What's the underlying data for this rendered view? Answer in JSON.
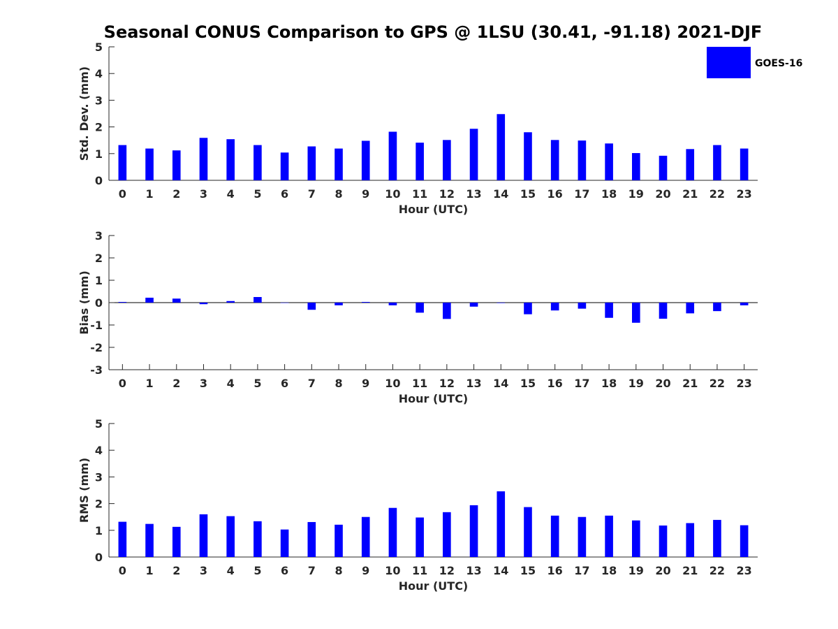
{
  "figure": {
    "title": "Seasonal CONUS Comparison to GPS @ 1LSU (30.41, -91.18) 2021-DJF",
    "legend_label": "GOES-16",
    "legend_position": "top-right",
    "bar_color": "#0000ff"
  },
  "chart_data": [
    {
      "type": "bar",
      "title": "Seasonal CONUS Comparison to GPS @ 1LSU (30.41, -91.18) 2021-DJF",
      "xlabel": "Hour (UTC)",
      "ylabel": "Std. Dev. (mm)",
      "ylim": [
        0,
        5
      ],
      "yticks": [
        "0",
        "1",
        "2",
        "3",
        "4",
        "5"
      ],
      "categories": [
        "0",
        "1",
        "2",
        "3",
        "4",
        "5",
        "6",
        "7",
        "8",
        "9",
        "10",
        "11",
        "12",
        "13",
        "14",
        "15",
        "16",
        "17",
        "18",
        "19",
        "20",
        "21",
        "22",
        "23"
      ],
      "series": [
        {
          "name": "GOES-16",
          "values": [
            1.32,
            1.19,
            1.12,
            1.59,
            1.54,
            1.32,
            1.04,
            1.27,
            1.19,
            1.48,
            1.82,
            1.41,
            1.51,
            1.93,
            2.48,
            1.8,
            1.51,
            1.49,
            1.38,
            1.02,
            0.92,
            1.17,
            1.32,
            1.19
          ]
        }
      ]
    },
    {
      "type": "bar",
      "xlabel": "Hour (UTC)",
      "ylabel": "Bias (mm)",
      "ylim": [
        -3,
        3
      ],
      "yticks": [
        "-3",
        "-2",
        "-1",
        "0",
        "1",
        "2",
        "3"
      ],
      "categories": [
        "0",
        "1",
        "2",
        "3",
        "4",
        "5",
        "6",
        "7",
        "8",
        "9",
        "10",
        "11",
        "12",
        "13",
        "14",
        "15",
        "16",
        "17",
        "18",
        "19",
        "20",
        "21",
        "22",
        "23"
      ],
      "series": [
        {
          "name": "GOES-16",
          "values": [
            0.03,
            0.22,
            0.18,
            -0.07,
            0.07,
            0.25,
            -0.01,
            -0.32,
            -0.12,
            0.03,
            -0.12,
            -0.45,
            -0.73,
            -0.18,
            -0.02,
            -0.52,
            -0.35,
            -0.27,
            -0.68,
            -0.9,
            -0.72,
            -0.48,
            -0.38,
            -0.12
          ]
        }
      ]
    },
    {
      "type": "bar",
      "xlabel": "Hour (UTC)",
      "ylabel": "RMS (mm)",
      "ylim": [
        0,
        5
      ],
      "yticks": [
        "0",
        "1",
        "2",
        "3",
        "4",
        "5"
      ],
      "categories": [
        "0",
        "1",
        "2",
        "3",
        "4",
        "5",
        "6",
        "7",
        "8",
        "9",
        "10",
        "11",
        "12",
        "13",
        "14",
        "15",
        "16",
        "17",
        "18",
        "19",
        "20",
        "21",
        "22",
        "23"
      ],
      "series": [
        {
          "name": "GOES-16",
          "values": [
            1.32,
            1.24,
            1.13,
            1.6,
            1.53,
            1.34,
            1.03,
            1.31,
            1.21,
            1.5,
            1.84,
            1.48,
            1.68,
            1.94,
            2.46,
            1.87,
            1.55,
            1.5,
            1.55,
            1.37,
            1.18,
            1.27,
            1.39,
            1.19
          ]
        }
      ]
    }
  ]
}
